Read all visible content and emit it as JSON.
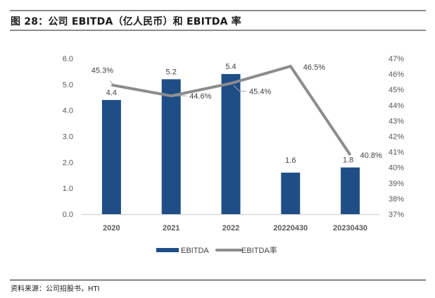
{
  "figure": {
    "title": "图 28：公司 EBITDA（亿人民币）和 EBITDA 率",
    "source": "资料来源：公司招股书，HTI"
  },
  "colors": {
    "bar": "#1f4e87",
    "line": "#8c8c8c",
    "axis": "#d9d9d9"
  },
  "chart_data": {
    "type": "bar+line",
    "title": "公司 EBITDA（亿人民币）和 EBITDA 率",
    "categories": [
      "2020",
      "2021",
      "2022",
      "20220430",
      "20230430"
    ],
    "series": [
      {
        "name": "EBITDA",
        "type": "bar",
        "axis": "left",
        "values": [
          4.4,
          5.2,
          5.4,
          1.6,
          1.8
        ],
        "labels": [
          "4.4",
          "5.2",
          "5.4",
          "1.6",
          "1.8"
        ]
      },
      {
        "name": "EBITDA率",
        "type": "line",
        "axis": "right",
        "values": [
          45.3,
          44.6,
          45.4,
          46.5,
          40.8
        ],
        "labels": [
          "45.3%",
          "44.6%",
          "45.4%",
          "46.5%",
          "40.8%"
        ]
      }
    ],
    "left_axis": {
      "range": [
        0,
        6
      ],
      "ticks": [
        "0.0",
        "1.0",
        "2.0",
        "3.0",
        "4.0",
        "5.0",
        "6.0"
      ],
      "tick_values": [
        0,
        1,
        2,
        3,
        4,
        5,
        6
      ]
    },
    "right_axis": {
      "range": [
        37,
        47
      ],
      "ticks": [
        "37%",
        "38%",
        "39%",
        "40%",
        "41%",
        "42%",
        "43%",
        "44%",
        "45%",
        "46%",
        "47%"
      ],
      "tick_values": [
        37,
        38,
        39,
        40,
        41,
        42,
        43,
        44,
        45,
        46,
        47
      ]
    },
    "xlabel": "",
    "ylabel": "",
    "grid": false,
    "legend": {
      "position": "bottom",
      "entries": [
        "EBITDA",
        "EBITDA率"
      ]
    }
  }
}
